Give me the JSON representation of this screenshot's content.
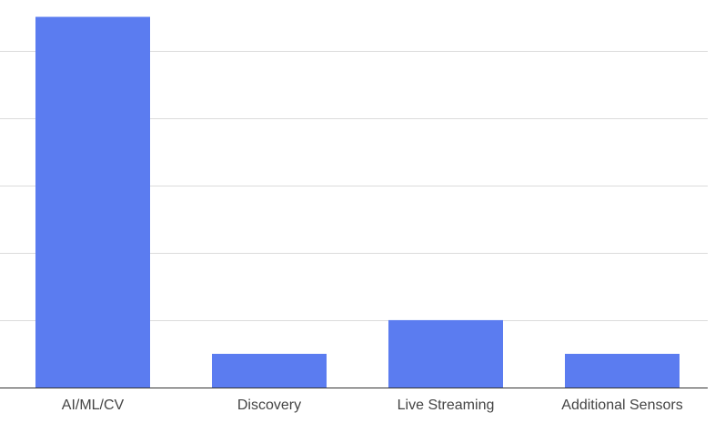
{
  "chart_data": {
    "type": "bar",
    "categories": [
      "AI/ML/CV",
      "Discovery",
      "Live Streaming",
      "Additional Sensors"
    ],
    "values": [
      11,
      1,
      2,
      1
    ],
    "ylim": [
      0,
      11.5
    ],
    "gridlines": [
      0,
      2,
      4,
      6,
      8,
      10
    ],
    "bar_color": "#5b7cf0",
    "grid_color": "#dcdcdc",
    "grid": true
  }
}
